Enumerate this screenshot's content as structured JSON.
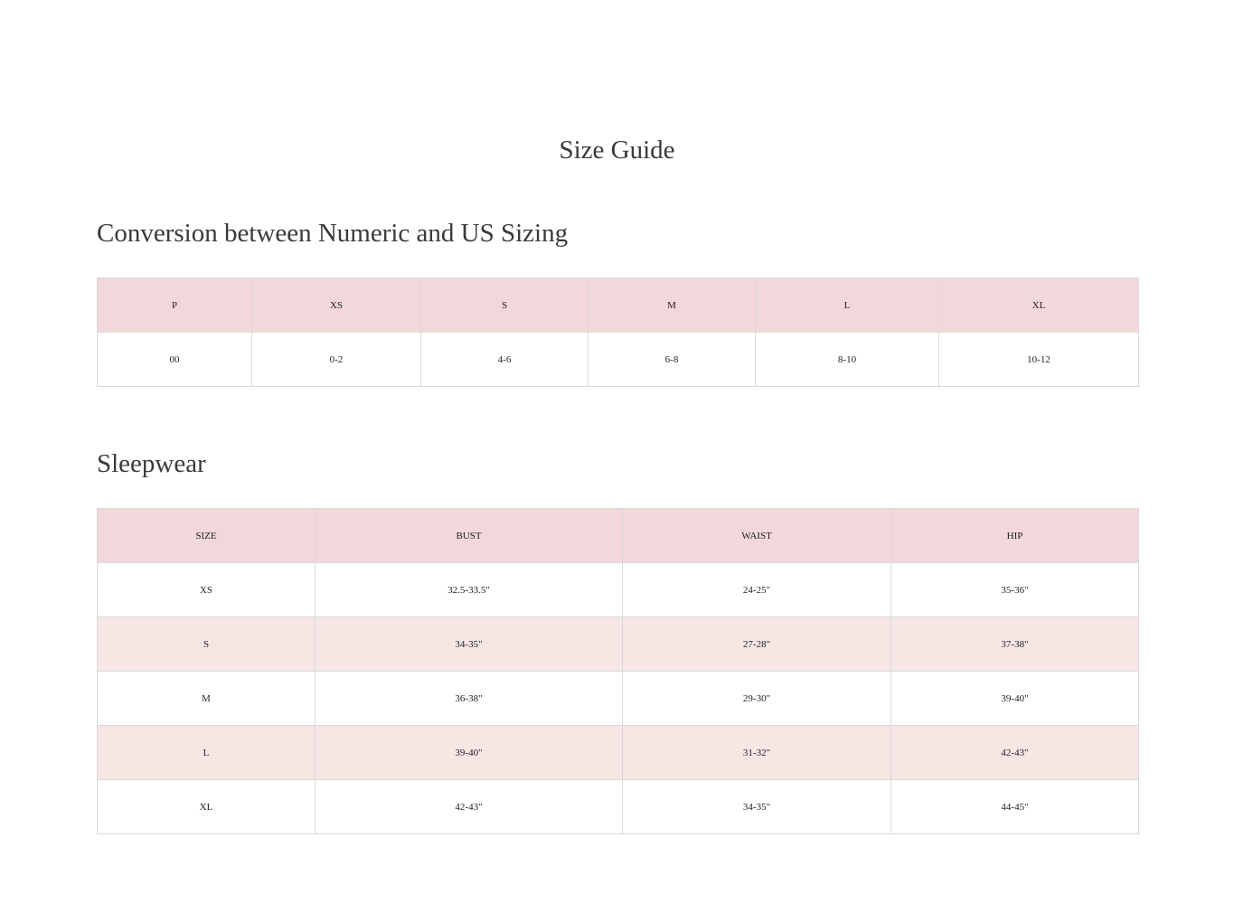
{
  "title": "Size Guide",
  "conversion": {
    "heading": "Conversion between Numeric and US Sizing",
    "headers": [
      "P",
      "XS",
      "S",
      "M",
      "L",
      "XL"
    ],
    "rows": [
      [
        "00",
        "0-2",
        "4-6",
        "6-8",
        "8-10",
        "10-12"
      ]
    ]
  },
  "sleepwear": {
    "heading": "Sleepwear",
    "headers": [
      "SIZE",
      "BUST",
      "WAIST",
      "HIP"
    ],
    "rows": [
      [
        "XS",
        "32.5-33.5\"",
        "24-25\"",
        "35-36\""
      ],
      [
        "S",
        "34-35\"",
        "27-28\"",
        "37-38\""
      ],
      [
        "M",
        "36-38\"",
        "29-30\"",
        "39-40\""
      ],
      [
        "L",
        "39-40\"",
        "31-32\"",
        "42-43\""
      ],
      [
        "XL",
        "42-43\"",
        "34-35\"",
        "44-45\""
      ]
    ]
  },
  "colors": {
    "header_bg": "#f2d8da",
    "stripe_bg": "#f6e7e4",
    "border": "#d9d9d9"
  }
}
